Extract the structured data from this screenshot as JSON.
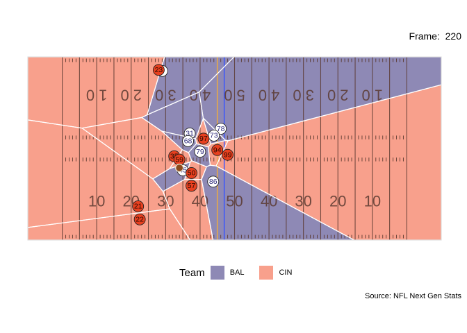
{
  "frame": {
    "label": "Frame:",
    "value": "220"
  },
  "legend": {
    "title": "Team",
    "items": [
      {
        "name": "BAL",
        "color": "#8e89b5"
      },
      {
        "name": "CIN",
        "color": "#f8a08c"
      }
    ]
  },
  "source": "Source: NFL Next Gen Stats",
  "colors": {
    "bal": "#8e89b5",
    "cin": "#f8a08c",
    "cin_player": "#e8401f",
    "bal_player": "#ffffff",
    "ball": "#8b4a1e",
    "line_of_scrimmage": "#3553ff",
    "first_down": "#e6a94a",
    "yard_line": "#5a3a30"
  },
  "chart_data": {
    "type": "scatter",
    "title": "",
    "xlabel": "",
    "ylabel": "",
    "xlim": [
      0,
      120
    ],
    "ylim": [
      0,
      53.3
    ],
    "top_numbers": [
      "1 0",
      "2 0",
      "3 0",
      "4 0",
      "5 0",
      "4 0",
      "3 0",
      "2 0",
      "1 0"
    ],
    "bottom_numbers": [
      "10",
      "20",
      "30",
      "40",
      "50",
      "40",
      "30",
      "20",
      "10"
    ],
    "line_of_scrimmage_x": 57,
    "first_down_x": 55,
    "cin_players": [
      {
        "jersey": "23",
        "x": 38,
        "y": 49.5
      },
      {
        "jersey": "97",
        "x": 51,
        "y": 29.5
      },
      {
        "jersey": "94",
        "x": 55,
        "y": 26.2
      },
      {
        "jersey": "99",
        "x": 58,
        "y": 24.8
      },
      {
        "jersey": "35",
        "x": 42.5,
        "y": 24.4
      },
      {
        "jersey": "59",
        "x": 44,
        "y": 23.4
      },
      {
        "jersey": "50",
        "x": 47.5,
        "y": 19.5
      },
      {
        "jersey": "57",
        "x": 47.5,
        "y": 15.8
      },
      {
        "jersey": "21",
        "x": 32,
        "y": 9.8
      },
      {
        "jersey": "22",
        "x": 32.5,
        "y": 6
      }
    ],
    "bal_players": [
      {
        "jersey": "5",
        "x": 39,
        "y": 49.2
      },
      {
        "jersey": "78",
        "x": 56,
        "y": 32.4
      },
      {
        "jersey": "73",
        "x": 54,
        "y": 30.4
      },
      {
        "jersey": "31",
        "x": 47,
        "y": 31
      },
      {
        "jersey": "68",
        "x": 46.5,
        "y": 28.8
      },
      {
        "jersey": "79",
        "x": 50,
        "y": 25.7
      },
      {
        "jersey": "86",
        "x": 53.8,
        "y": 17
      },
      {
        "jersey": "45",
        "x": 45,
        "y": 20.3
      }
    ],
    "ball": {
      "x": 44,
      "y": 21
    }
  }
}
